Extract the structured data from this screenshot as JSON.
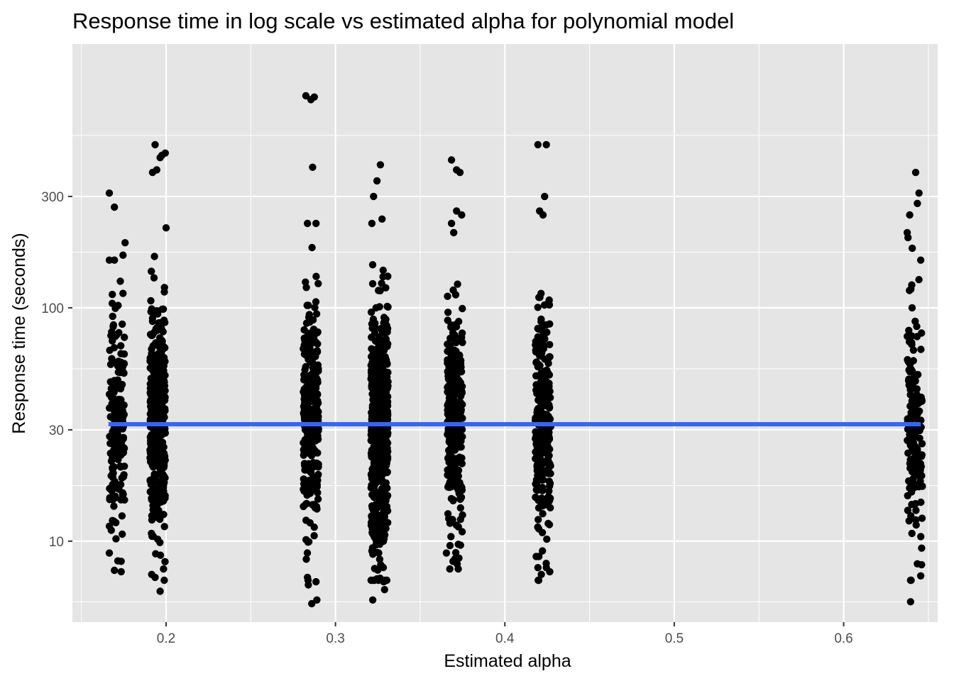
{
  "chart_data": {
    "type": "scatter",
    "title": "Response time in log scale vs estimated alpha for polynomial model",
    "xlabel": "Estimated alpha",
    "ylabel": "Response time (seconds)",
    "x_ticks": [
      0.2,
      0.3,
      0.4,
      0.5,
      0.6
    ],
    "x_tick_labels": [
      "0.2",
      "0.3",
      "0.4",
      "0.5",
      "0.6"
    ],
    "x_minor_ticks": [
      0.15,
      0.25,
      0.35,
      0.45,
      0.55,
      0.65
    ],
    "xlim": [
      0.1447,
      0.6555
    ],
    "y_scale": "log10",
    "y_ticks": [
      10,
      30,
      100,
      300
    ],
    "y_tick_labels": [
      "10",
      "30",
      "100",
      "300"
    ],
    "y_minor_ticks": [
      5.5,
      17.3,
      54.8,
      173.2,
      548
    ],
    "ylim": [
      4.5,
      1350
    ],
    "grid": true,
    "legend": "none",
    "colors": {
      "panel": "#e5e5e5",
      "grid": "#ffffff",
      "point": "#000000",
      "trend": "#3366ff"
    },
    "series": [
      {
        "type": "points",
        "groups": [
          {
            "alpha": 0.171,
            "jitter": 0.0045,
            "n": 180,
            "center": 32,
            "spread": 0.23,
            "extremes": [
              [
                0.1665,
                310
              ],
              [
                0.1695,
                270
              ],
              [
                0.1758,
                190
              ],
              [
                0.1665,
                160
              ],
              [
                0.1695,
                160
              ],
              [
                0.173,
                130
              ],
              [
                0.1695,
                7.5
              ],
              [
                0.1735,
                7.4
              ],
              [
                0.1665,
                8.9
              ],
              [
                0.1735,
                8.2
              ]
            ]
          },
          {
            "alpha": 0.195,
            "jitter": 0.0045,
            "n": 420,
            "center": 32,
            "spread": 0.24,
            "extremes": [
              [
                0.1935,
                500
              ],
              [
                0.1975,
                450
              ],
              [
                0.1995,
                460
              ],
              [
                0.192,
                380
              ],
              [
                0.1945,
                390
              ],
              [
                0.1965,
                440
              ],
              [
                0.2,
                220
              ],
              [
                0.1915,
                7.2
              ],
              [
                0.1935,
                7.0
              ],
              [
                0.1965,
                6.1
              ],
              [
                0.1985,
                7.6
              ]
            ]
          },
          {
            "alpha": 0.2855,
            "jitter": 0.0045,
            "n": 340,
            "center": 32,
            "spread": 0.24,
            "extremes": [
              [
                0.2825,
                810
              ],
              [
                0.2855,
                780
              ],
              [
                0.2875,
                800
              ],
              [
                0.2865,
                400
              ],
              [
                0.2835,
                230
              ],
              [
                0.2885,
                230
              ],
              [
                0.286,
                5.4
              ],
              [
                0.284,
                6.5
              ],
              [
                0.2885,
                6.7
              ],
              [
                0.2835,
                7.0
              ],
              [
                0.289,
                5.6
              ]
            ]
          },
          {
            "alpha": 0.326,
            "jitter": 0.005,
            "n": 700,
            "center": 30,
            "spread": 0.25,
            "extremes": [
              [
                0.3265,
                410
              ],
              [
                0.3245,
                350
              ],
              [
                0.3225,
                300
              ],
              [
                0.3275,
                240
              ],
              [
                0.3215,
                230
              ],
              [
                0.322,
                5.6
              ],
              [
                0.3245,
                6.9
              ],
              [
                0.3285,
                6.7
              ],
              [
                0.329,
                6.2
              ]
            ]
          },
          {
            "alpha": 0.3705,
            "jitter": 0.0045,
            "n": 300,
            "center": 32,
            "spread": 0.24,
            "extremes": [
              [
                0.3685,
                430
              ],
              [
                0.3715,
                390
              ],
              [
                0.3735,
                380
              ],
              [
                0.3715,
                260
              ],
              [
                0.3745,
                250
              ],
              [
                0.3685,
                230
              ],
              [
                0.3675,
                7.6
              ],
              [
                0.3725,
                7.6
              ],
              [
                0.3705,
                8.4
              ],
              [
                0.3655,
                8.9
              ]
            ]
          },
          {
            "alpha": 0.4225,
            "jitter": 0.0045,
            "n": 320,
            "center": 32,
            "spread": 0.24,
            "extremes": [
              [
                0.4195,
                500
              ],
              [
                0.4245,
                500
              ],
              [
                0.4235,
                300
              ],
              [
                0.4205,
                260
              ],
              [
                0.4225,
                250
              ],
              [
                0.4195,
                7.7
              ],
              [
                0.4215,
                7.2
              ],
              [
                0.4245,
                7.7
              ],
              [
                0.4265,
                7.4
              ],
              [
                0.4185,
                8.6
              ]
            ]
          },
          {
            "alpha": 0.642,
            "jitter": 0.0045,
            "n": 160,
            "center": 30,
            "spread": 0.25,
            "extremes": [
              [
                0.6425,
                380
              ],
              [
                0.6445,
                310
              ],
              [
                0.6435,
                280
              ],
              [
                0.639,
                250
              ],
              [
                0.638,
                200
              ],
              [
                0.6405,
                180
              ],
              [
                0.6455,
                160
              ],
              [
                0.6395,
                5.5
              ],
              [
                0.6395,
                6.8
              ],
              [
                0.6455,
                7.1
              ],
              [
                0.6435,
                8.0
              ]
            ]
          }
        ]
      },
      {
        "type": "line",
        "x": [
          0.166,
          0.6455
        ],
        "y": [
          31.7,
          31.7
        ]
      }
    ]
  }
}
